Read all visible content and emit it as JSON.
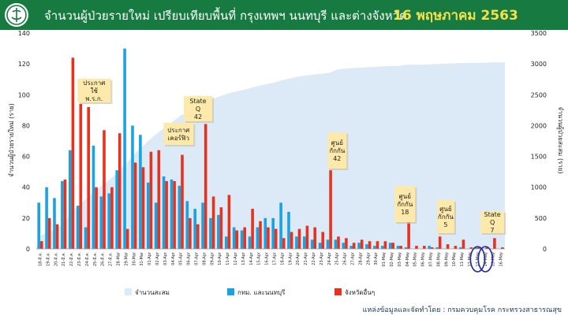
{
  "header": {
    "title": "จำนวนผู้ป่วยรายใหม่ เปรียบเทียบพื้นที่ กรุงเทพฯ นนทบุรี และต่างจังหวัด",
    "date": "16 พฤษภาคม 2563",
    "logo_icon": "ministry-of-public-health-seal-icon"
  },
  "source": "แหล่งข้อมูลและจัดทำโดย : กรมควบคุมโรค กระทรวงสาธารณสุข",
  "colors": {
    "header_bg": "#167a41",
    "date_text": "#f5e04a",
    "bkk_bar": "#1aa3e0",
    "other_bar": "#e8321e",
    "cumulative_area": "#dce9f7",
    "callout_bg": "#fde9a9",
    "highlight_ring": "#1f2aa8"
  },
  "chart_data": {
    "type": "bar",
    "categories": [
      "18-มี.ค.",
      "19-มี.ค.",
      "20-มี.ค.",
      "21-มี.ค.",
      "22-มี.ค.",
      "23-มี.ค.",
      "24-มี.ค.",
      "25-มี.ค.",
      "26-มี.ค.",
      "27-มี.ค.",
      "28-Mar",
      "29-Mar",
      "30-Mar",
      "31-Mar",
      "01-Apr",
      "02-Apr",
      "03-Apr",
      "04-Apr",
      "05-Apr",
      "06-Apr",
      "07-Apr",
      "08-Apr",
      "09-Apr",
      "10-Apr",
      "11-Apr",
      "12-Apr",
      "13-Apr",
      "14-Apr",
      "15-Apr",
      "16-Apr",
      "17-Apr",
      "18-Apr",
      "19-Apr",
      "20-Apr",
      "21-Apr",
      "22-Apr",
      "23-Apr",
      "24-Apr",
      "25-Apr",
      "26-Apr",
      "27-Apr",
      "28-Apr",
      "29-Apr",
      "30-Apr",
      "01-May",
      "02-May",
      "03-May",
      "04-May",
      "05-May",
      "06-May",
      "07-May",
      "08-May",
      "09-May",
      "10-May",
      "11-May",
      "12-May",
      "13-May",
      "14-May",
      "15-May",
      "16-May"
    ],
    "series": [
      {
        "name": "จำนวนสะสม",
        "kind": "area",
        "axis": "right",
        "values": [
          212,
          272,
          322,
          411,
          599,
          721,
          827,
          934,
          1045,
          1136,
          1245,
          1388,
          1524,
          1651,
          1771,
          1875,
          1978,
          2067,
          2169,
          2220,
          2258,
          2369,
          2423,
          2473,
          2518,
          2551,
          2579,
          2613,
          2643,
          2672,
          2700,
          2733,
          2765,
          2792,
          2811,
          2826,
          2839,
          2854,
          2907,
          2922,
          2931,
          2938,
          2947,
          2954,
          2960,
          2966,
          2969,
          2987,
          2988,
          2989,
          2992,
          2999,
          3004,
          3009,
          3015,
          3017,
          3017,
          3018,
          3025,
          3025
        ]
      },
      {
        "name": "กทม. และนนทบุรี",
        "kind": "bar",
        "axis": "left",
        "values": [
          30,
          40,
          33,
          44,
          64,
          28,
          14,
          67,
          34,
          36,
          51,
          130,
          80,
          74,
          43,
          30,
          47,
          45,
          41,
          31,
          26,
          30,
          20,
          22,
          8,
          14,
          12,
          8,
          14,
          20,
          20,
          30,
          24,
          8,
          8,
          6,
          4,
          6,
          6,
          4,
          2,
          4,
          3,
          2,
          2,
          4,
          2,
          1,
          0,
          0,
          2,
          1,
          0,
          0,
          1,
          0,
          1,
          0,
          0,
          0
        ]
      },
      {
        "name": "จังหวัดอื่นๆ",
        "kind": "bar",
        "axis": "left",
        "values": [
          5,
          20,
          16,
          45,
          124,
          94,
          92,
          40,
          77,
          40,
          75,
          13,
          56,
          53,
          63,
          64,
          44,
          44,
          61,
          20,
          16,
          81,
          34,
          27,
          35,
          12,
          14,
          26,
          18,
          14,
          13,
          7,
          11,
          13,
          15,
          14,
          11,
          51,
          8,
          7,
          4,
          6,
          5,
          5,
          5,
          4,
          2,
          18,
          2,
          2,
          1,
          8,
          3,
          2,
          6,
          1,
          1,
          1,
          7,
          1
        ]
      }
    ],
    "ylabel": "จำนวนผู้ป่วยรายใหม่ (ราย)",
    "y2label": "จำนวนผู้ป่วยสะสม (ราย)",
    "ylim": [
      0,
      140
    ],
    "yticks": [
      0,
      20,
      40,
      60,
      80,
      100,
      120,
      140
    ],
    "y2lim": [
      0,
      3500
    ],
    "y2ticks": [
      0,
      500,
      1000,
      1500,
      2000,
      2500,
      3000,
      3500
    ],
    "grid": false,
    "legend_position": "bottom",
    "annotations": [
      {
        "text": "ประกาศ ใช้ พ.ร.ก.",
        "category": "25-มี.ค."
      },
      {
        "text": "ประกาศ เคอร์ฟิว",
        "category": "03-Apr"
      },
      {
        "text": "State Q 42",
        "category": "07-Apr"
      },
      {
        "text": "ศูนย์ กักกัน 42",
        "category": "24-Apr"
      },
      {
        "text": "ศูนย์ กักกัน 18",
        "category": "04-May"
      },
      {
        "text": "ศูนย์ กักกัน 5",
        "category": "08-May"
      },
      {
        "text": "State Q 7",
        "category": "15-May"
      }
    ],
    "highlighted_categories": [
      "13-May",
      "14-May"
    ]
  }
}
